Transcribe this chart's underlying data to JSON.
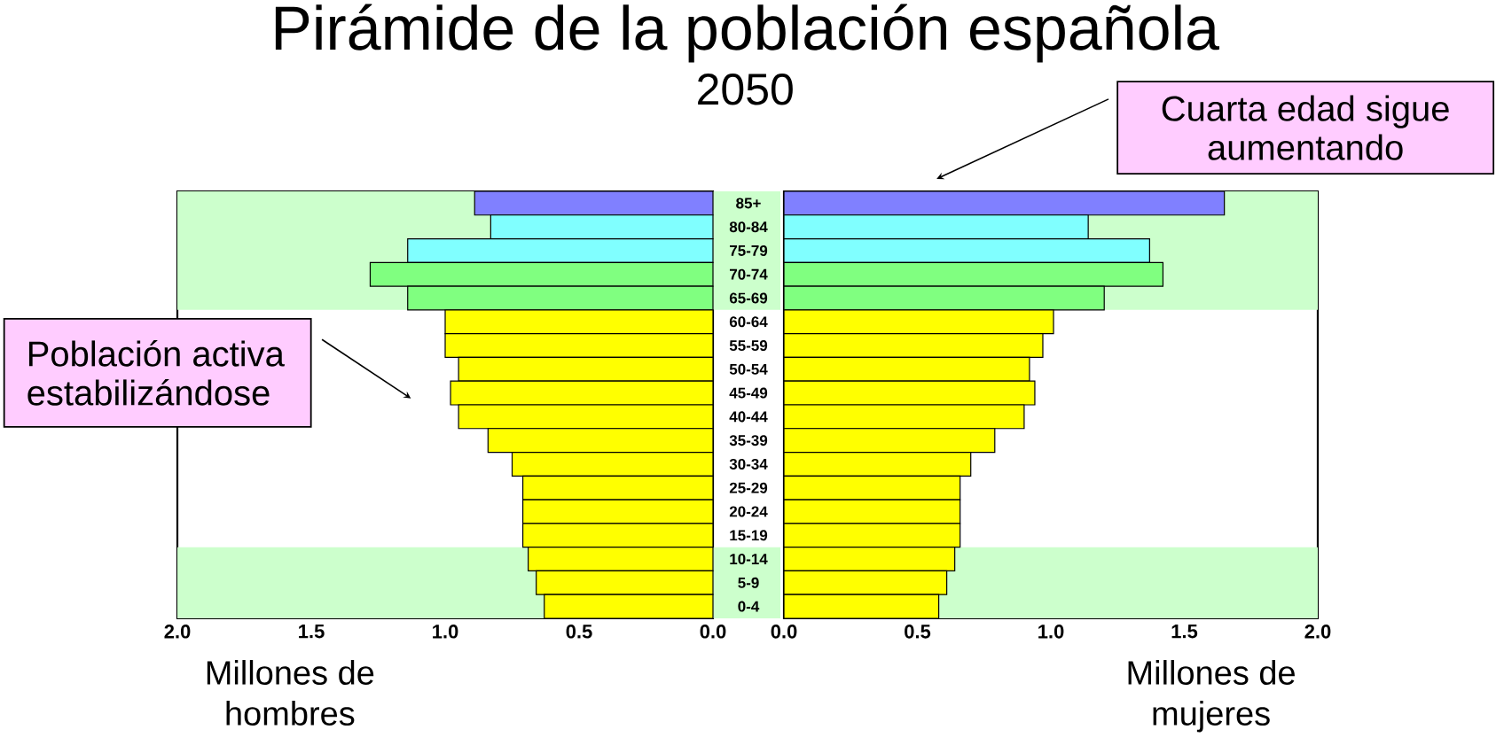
{
  "chart_data": [
    {
      "type": "bar",
      "orientation": "horizontal",
      "title": "Pirámide de la población española",
      "subtitle": "2050",
      "xlabel": "Millones de hombres",
      "categories": [
        "85+",
        "80-84",
        "75-79",
        "70-74",
        "65-69",
        "60-64",
        "55-59",
        "50-54",
        "45-49",
        "40-44",
        "35-39",
        "30-34",
        "25-29",
        "20-24",
        "15-19",
        "10-14",
        "5-9",
        "0-4"
      ],
      "values": [
        0.89,
        0.83,
        1.14,
        1.28,
        1.14,
        1.0,
        1.0,
        0.95,
        0.98,
        0.95,
        0.84,
        0.75,
        0.71,
        0.71,
        0.71,
        0.69,
        0.66,
        0.63
      ],
      "colors": [
        "#8080ff",
        "#80ffff",
        "#80ffff",
        "#80ff80",
        "#80ff80",
        "#ffff00",
        "#ffff00",
        "#ffff00",
        "#ffff00",
        "#ffff00",
        "#ffff00",
        "#ffff00",
        "#ffff00",
        "#ffff00",
        "#ffff00",
        "#ffff00",
        "#ffff00",
        "#ffff00"
      ],
      "xlim": [
        2,
        0
      ],
      "xticks": [
        {
          "value": 2,
          "label": "2.0"
        },
        {
          "value": 1.5,
          "label": "1.5"
        },
        {
          "value": 1,
          "label": "1.0"
        },
        {
          "value": 0.5,
          "label": "0.5"
        },
        {
          "value": 0,
          "label": "0.0"
        }
      ],
      "tick_labels": "x",
      "bands": [
        {
          "axis": "y",
          "from": "65-69",
          "to": "85+",
          "color": "#ccffcc"
        },
        {
          "axis": "y",
          "from": "0-4",
          "to": "10-14",
          "color": "#ccffcc"
        }
      ],
      "annotations": [
        "Población activa estabilizándose"
      ]
    },
    {
      "type": "bar",
      "orientation": "horizontal",
      "xlabel": "Millones de mujeres",
      "categories": [
        "85+",
        "80-84",
        "75-79",
        "70-74",
        "65-69",
        "60-64",
        "55-59",
        "50-54",
        "45-49",
        "40-44",
        "35-39",
        "30-34",
        "25-29",
        "20-24",
        "15-19",
        "10-14",
        "5-9",
        "0-4"
      ],
      "values": [
        1.65,
        1.14,
        1.37,
        1.42,
        1.2,
        1.01,
        0.97,
        0.92,
        0.94,
        0.9,
        0.79,
        0.7,
        0.66,
        0.66,
        0.66,
        0.64,
        0.61,
        0.58
      ],
      "colors": [
        "#8080ff",
        "#80ffff",
        "#80ffff",
        "#80ff80",
        "#80ff80",
        "#ffff00",
        "#ffff00",
        "#ffff00",
        "#ffff00",
        "#ffff00",
        "#ffff00",
        "#ffff00",
        "#ffff00",
        "#ffff00",
        "#ffff00",
        "#ffff00",
        "#ffff00",
        "#ffff00"
      ],
      "xlim": [
        0,
        2
      ],
      "xticks": [
        {
          "value": 0,
          "label": "0.0"
        },
        {
          "value": 0.5,
          "label": "0.5"
        },
        {
          "value": 1,
          "label": "1.0"
        },
        {
          "value": 1.5,
          "label": "1.5"
        },
        {
          "value": 2,
          "label": "2.0"
        }
      ],
      "bands": [
        {
          "axis": "y",
          "from": "65-69",
          "to": "85+",
          "color": "#ccffcc"
        },
        {
          "axis": "y",
          "from": "0-4",
          "to": "10-14",
          "color": "#ccffcc"
        }
      ],
      "annotations": [
        "Cuarta edad sigue aumentando"
      ]
    }
  ]
}
